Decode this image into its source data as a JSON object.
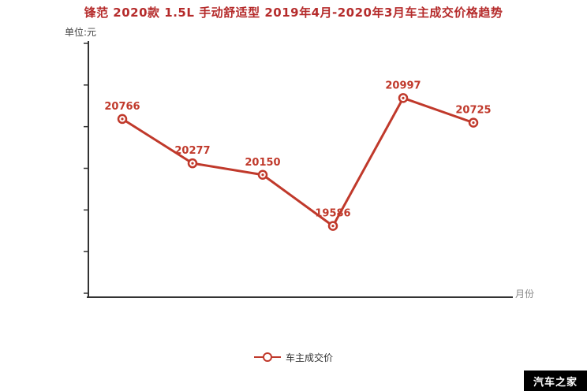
{
  "title": "锋范 2020款 1.5L 手动舒适型 2019年4月-2020年3月车主成交价格趋势",
  "y_unit_label": "单位:元",
  "x_axis_label": "月份",
  "legend": {
    "label": "车主成交价"
  },
  "watermark": "汽车之家",
  "colors": {
    "accent": "#c0392b",
    "data_label": "#c0392b",
    "axis": "#333333",
    "title": "#b52b2b",
    "watermark_bg": "#000000",
    "watermark_text": "#ffffff"
  },
  "chart_data": {
    "type": "line",
    "title": "锋范 2020款 1.5L 手动舒适型 2019年4月-2020年3月车主成交价格趋势",
    "xlabel": "月份",
    "ylabel": "单位:元",
    "categories": [
      "",
      "",
      "",
      "",
      "",
      ""
    ],
    "x_tick_labels_visible": false,
    "y_tick_labels_visible": false,
    "y_tick_count": 7,
    "series": [
      {
        "name": "车主成交价",
        "values": [
          20766,
          20277,
          20150,
          19586,
          20997,
          20725
        ]
      }
    ],
    "ylim": [
      18800,
      21600
    ],
    "grid": false,
    "legend_position": "bottom"
  }
}
